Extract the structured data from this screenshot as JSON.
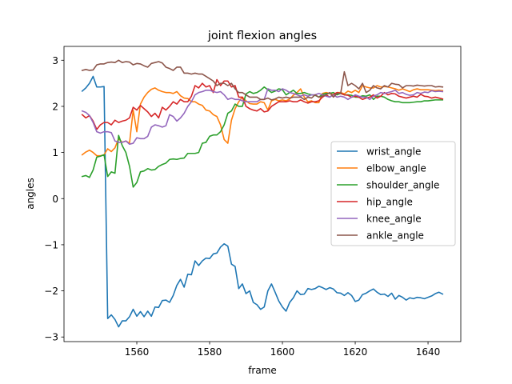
{
  "chart_data": {
    "type": "line",
    "title": "joint flexion angles",
    "xlabel": "frame",
    "ylabel": "angles",
    "xlim": [
      1540,
      1649
    ],
    "ylim": [
      -3.1,
      3.3
    ],
    "xticks": [
      1560,
      1580,
      1600,
      1620,
      1640
    ],
    "yticks": [
      -3,
      -2,
      -1,
      0,
      1,
      2,
      3
    ],
    "grid": false,
    "legend_position": "center-right",
    "x": [
      1545,
      1546,
      1547,
      1548,
      1549,
      1550,
      1551,
      1552,
      1553,
      1554,
      1555,
      1556,
      1557,
      1558,
      1559,
      1560,
      1561,
      1562,
      1563,
      1564,
      1565,
      1566,
      1567,
      1568,
      1569,
      1570,
      1571,
      1572,
      1573,
      1574,
      1575,
      1576,
      1577,
      1578,
      1579,
      1580,
      1581,
      1582,
      1583,
      1584,
      1585,
      1586,
      1587,
      1588,
      1589,
      1590,
      1591,
      1592,
      1593,
      1594,
      1595,
      1596,
      1597,
      1598,
      1599,
      1600,
      1601,
      1602,
      1603,
      1604,
      1605,
      1606,
      1607,
      1608,
      1609,
      1610,
      1611,
      1612,
      1613,
      1614,
      1615,
      1616,
      1617,
      1618,
      1619,
      1620,
      1621,
      1622,
      1623,
      1624,
      1625,
      1626,
      1627,
      1628,
      1629,
      1630,
      1631,
      1632,
      1633,
      1634,
      1635,
      1636,
      1637,
      1638,
      1639,
      1640,
      1641,
      1642,
      1643,
      1644
    ],
    "series": [
      {
        "name": "wrist_angle",
        "color": "#1f77b4",
        "values": [
          2.33,
          2.4,
          2.5,
          2.65,
          2.42,
          2.42,
          2.43,
          -2.6,
          -2.52,
          -2.62,
          -2.78,
          -2.65,
          -2.65,
          -2.56,
          -2.4,
          -2.55,
          -2.45,
          -2.56,
          -2.44,
          -2.55,
          -2.35,
          -2.36,
          -2.21,
          -2.2,
          -2.25,
          -2.1,
          -1.88,
          -1.75,
          -1.92,
          -1.64,
          -1.65,
          -1.35,
          -1.45,
          -1.35,
          -1.29,
          -1.3,
          -1.2,
          -1.18,
          -1.05,
          -0.98,
          -1.03,
          -1.42,
          -1.47,
          -1.95,
          -1.85,
          -2.06,
          -2.0,
          -2.25,
          -2.3,
          -2.4,
          -2.35,
          -2.0,
          -1.85,
          -2.03,
          -2.22,
          -2.35,
          -2.44,
          -2.25,
          -2.15,
          -2.0,
          -2.08,
          -2.07,
          -1.95,
          -1.97,
          -1.95,
          -1.9,
          -1.93,
          -1.97,
          -1.93,
          -1.96,
          -2.04,
          -2.05,
          -2.1,
          -2.04,
          -2.1,
          -2.23,
          -2.2,
          -2.08,
          -2.05,
          -2.0,
          -1.96,
          -2.03,
          -2.08,
          -2.07,
          -2.12,
          -2.05,
          -2.18,
          -2.1,
          -2.14,
          -2.2,
          -2.15,
          -2.17,
          -2.14,
          -2.15,
          -2.17,
          -2.14,
          -2.11,
          -2.06,
          -2.03,
          -2.07
        ]
      },
      {
        "name": "elbow_angle",
        "color": "#ff7f0e",
        "values": [
          0.95,
          1.01,
          1.05,
          1.0,
          0.93,
          0.93,
          0.95,
          1.08,
          1.02,
          1.1,
          1.3,
          1.22,
          1.25,
          1.2,
          1.92,
          1.45,
          2.05,
          2.2,
          2.3,
          2.37,
          2.4,
          2.35,
          2.32,
          2.3,
          2.3,
          2.28,
          2.32,
          2.23,
          2.18,
          2.17,
          2.1,
          2.1,
          2.05,
          2.02,
          1.92,
          1.9,
          1.82,
          1.78,
          1.6,
          1.28,
          1.2,
          1.7,
          1.95,
          2.1,
          2.2,
          2.12,
          2.06,
          2.05,
          2.05,
          2.1,
          2.08,
          1.92,
          2.12,
          2.15,
          2.12,
          2.14,
          2.12,
          2.16,
          2.24,
          2.3,
          2.38,
          2.2,
          2.1,
          2.12,
          2.08,
          2.08,
          2.28,
          2.3,
          2.28,
          2.25,
          2.3,
          2.3,
          2.27,
          2.33,
          2.3,
          2.35,
          2.3,
          2.45,
          2.42,
          2.4,
          2.4,
          2.45,
          2.42,
          2.43,
          2.42,
          2.4,
          2.38,
          2.35,
          2.38,
          2.35,
          2.32,
          2.36,
          2.38,
          2.36,
          2.36,
          2.36,
          2.35,
          2.34,
          2.35,
          2.34
        ]
      },
      {
        "name": "shoulder_angle",
        "color": "#2ca02c",
        "values": [
          0.48,
          0.5,
          0.46,
          0.62,
          0.9,
          0.92,
          0.95,
          0.48,
          0.58,
          0.55,
          1.37,
          1.15,
          1.0,
          0.7,
          0.25,
          0.35,
          0.58,
          0.6,
          0.65,
          0.62,
          0.63,
          0.7,
          0.74,
          0.77,
          0.85,
          0.86,
          0.85,
          0.87,
          0.88,
          0.98,
          0.98,
          0.98,
          1.0,
          1.2,
          1.22,
          1.35,
          1.38,
          1.38,
          1.45,
          1.6,
          1.85,
          1.9,
          2.05,
          2.0,
          2.0,
          2.27,
          2.32,
          2.28,
          2.3,
          2.35,
          2.42,
          2.36,
          2.3,
          2.33,
          2.38,
          2.36,
          2.25,
          2.3,
          2.35,
          2.28,
          2.28,
          2.3,
          2.27,
          2.25,
          2.24,
          2.2,
          2.26,
          2.28,
          2.28,
          2.3,
          2.25,
          2.28,
          2.25,
          2.25,
          2.24,
          2.2,
          2.2,
          2.23,
          2.22,
          2.25,
          2.15,
          2.22,
          2.22,
          2.2,
          2.15,
          2.12,
          2.1,
          2.1,
          2.08,
          2.08,
          2.08,
          2.09,
          2.1,
          2.1,
          2.12,
          2.12,
          2.13,
          2.14,
          2.14,
          2.14
        ]
      },
      {
        "name": "hip_angle",
        "color": "#d62728",
        "values": [
          1.82,
          1.75,
          1.8,
          1.68,
          1.5,
          1.6,
          1.65,
          1.65,
          1.6,
          1.7,
          1.65,
          1.68,
          1.7,
          1.75,
          1.98,
          1.92,
          2.02,
          1.95,
          1.88,
          1.78,
          1.85,
          1.75,
          1.98,
          1.92,
          2.0,
          2.1,
          2.05,
          2.15,
          2.1,
          2.1,
          2.22,
          2.45,
          2.4,
          2.5,
          2.42,
          2.45,
          2.3,
          2.58,
          2.45,
          2.55,
          2.55,
          2.42,
          2.45,
          2.2,
          2.2,
          2.0,
          1.95,
          1.92,
          1.9,
          1.95,
          1.88,
          1.9,
          2.0,
          2.05,
          2.1,
          2.1,
          2.1,
          2.12,
          2.1,
          2.1,
          2.14,
          2.1,
          2.07,
          2.1,
          2.1,
          2.12,
          2.2,
          2.25,
          2.2,
          2.26,
          2.3,
          2.28,
          2.25,
          2.24,
          2.2,
          2.22,
          2.2,
          2.15,
          2.18,
          2.2,
          2.25,
          2.18,
          2.22,
          2.3,
          2.25,
          2.28,
          2.27,
          2.22,
          2.2,
          2.18,
          2.2,
          2.22,
          2.2,
          2.26,
          2.22,
          2.21,
          2.18,
          2.2,
          2.18,
          2.16
        ]
      },
      {
        "name": "knee_angle",
        "color": "#9467bd",
        "values": [
          1.9,
          1.87,
          1.8,
          1.65,
          1.45,
          1.42,
          1.45,
          1.45,
          1.43,
          1.25,
          1.22,
          1.22,
          1.25,
          1.18,
          1.2,
          1.32,
          1.3,
          1.3,
          1.35,
          1.55,
          1.6,
          1.58,
          1.55,
          1.58,
          1.82,
          1.78,
          1.68,
          1.75,
          1.85,
          2.0,
          2.1,
          2.25,
          2.3,
          2.32,
          2.35,
          2.35,
          2.32,
          2.3,
          2.32,
          2.25,
          2.15,
          2.18,
          2.15,
          2.15,
          2.12,
          2.1,
          2.1,
          2.1,
          2.1,
          2.15,
          2.15,
          2.38,
          2.35,
          2.35,
          2.32,
          2.38,
          2.35,
          2.3,
          2.28,
          2.25,
          2.22,
          2.25,
          2.22,
          2.25,
          2.25,
          2.28,
          2.25,
          2.22,
          2.2,
          2.25,
          2.2,
          2.22,
          2.2,
          2.15,
          2.2,
          2.25,
          2.22,
          2.2,
          2.2,
          2.15,
          2.22,
          2.25,
          2.3,
          2.28,
          2.3,
          2.32,
          2.35,
          2.28,
          2.3,
          2.26,
          2.24,
          2.25,
          2.3,
          2.28,
          2.31,
          2.3,
          2.34,
          2.32,
          2.33,
          2.32
        ]
      },
      {
        "name": "ankle_angle",
        "color": "#8c564b",
        "values": [
          2.78,
          2.8,
          2.78,
          2.79,
          2.9,
          2.92,
          2.92,
          2.95,
          2.96,
          2.95,
          3.0,
          2.95,
          2.97,
          2.96,
          2.9,
          2.93,
          2.92,
          2.88,
          2.85,
          2.93,
          2.95,
          2.97,
          2.94,
          2.85,
          2.82,
          2.78,
          2.85,
          2.85,
          2.72,
          2.72,
          2.7,
          2.72,
          2.7,
          2.7,
          2.65,
          2.6,
          2.55,
          2.45,
          2.5,
          2.5,
          2.45,
          2.5,
          2.38,
          2.3,
          2.3,
          2.25,
          2.2,
          2.2,
          2.2,
          2.15,
          2.15,
          2.18,
          2.14,
          2.16,
          2.2,
          2.18,
          2.2,
          2.18,
          2.2,
          2.2,
          2.2,
          2.15,
          2.2,
          2.18,
          2.25,
          2.2,
          2.22,
          2.25,
          2.3,
          2.2,
          2.28,
          2.28,
          2.75,
          2.45,
          2.5,
          2.45,
          2.38,
          2.5,
          2.3,
          2.35,
          2.45,
          2.4,
          2.38,
          2.45,
          2.42,
          2.5,
          2.48,
          2.47,
          2.4,
          2.45,
          2.45,
          2.44,
          2.46,
          2.45,
          2.44,
          2.45,
          2.45,
          2.42,
          2.43,
          2.42
        ]
      }
    ]
  }
}
